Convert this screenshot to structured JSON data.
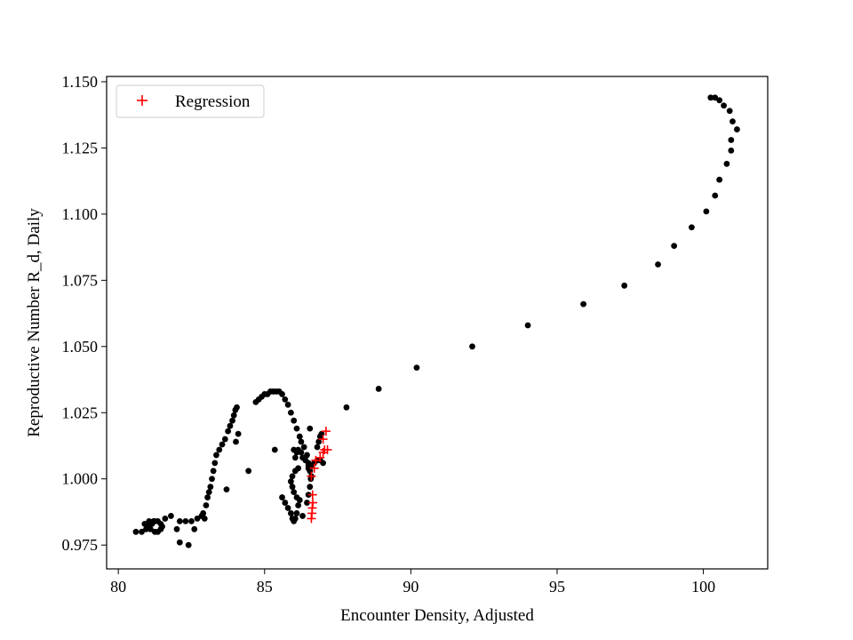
{
  "chart_data": {
    "type": "scatter",
    "title": "",
    "xlabel": "Encounter Density, Adjusted",
    "ylabel": "Reproductive Number R_d, Daily",
    "xlim": [
      79.6,
      102.2
    ],
    "ylim": [
      0.966,
      1.152
    ],
    "xticks": [
      80,
      85,
      90,
      95,
      100
    ],
    "xtick_labels": [
      "80",
      "85",
      "90",
      "95",
      "100"
    ],
    "yticks": [
      0.975,
      1.0,
      1.025,
      1.05,
      1.075,
      1.1,
      1.125,
      1.15
    ],
    "ytick_labels": [
      "0.975",
      "1.000",
      "1.025",
      "1.050",
      "1.075",
      "1.100",
      "1.125",
      "1.150"
    ],
    "grid": false,
    "legend": {
      "position": "top-left",
      "entries": [
        "Regression"
      ]
    },
    "colors": {
      "observed": "#000000",
      "regression": "#ff0000"
    },
    "series": [
      {
        "marker": "dot",
        "color": "#000000",
        "points": [
          [
            80.6,
            0.98
          ],
          [
            80.8,
            0.98
          ],
          [
            80.95,
            0.981
          ],
          [
            81.05,
            0.982
          ],
          [
            81.15,
            0.983
          ],
          [
            81.25,
            0.984
          ],
          [
            81.35,
            0.984
          ],
          [
            81.45,
            0.983
          ],
          [
            81.5,
            0.982
          ],
          [
            81.45,
            0.981
          ],
          [
            81.35,
            0.98
          ],
          [
            81.25,
            0.98
          ],
          [
            81.1,
            0.981
          ],
          [
            81.0,
            0.982
          ],
          [
            80.9,
            0.983
          ],
          [
            81.05,
            0.984
          ],
          [
            81.2,
            0.984
          ],
          [
            81.6,
            0.985
          ],
          [
            81.8,
            0.986
          ],
          [
            82.0,
            0.981
          ],
          [
            82.1,
            0.976
          ],
          [
            82.4,
            0.975
          ],
          [
            82.1,
            0.984
          ],
          [
            82.3,
            0.984
          ],
          [
            82.5,
            0.984
          ],
          [
            82.6,
            0.981
          ],
          [
            82.7,
            0.985
          ],
          [
            82.85,
            0.986
          ],
          [
            82.95,
            0.985
          ],
          [
            82.9,
            0.987
          ],
          [
            83.0,
            0.99
          ],
          [
            83.05,
            0.993
          ],
          [
            83.1,
            0.995
          ],
          [
            83.15,
            0.997
          ],
          [
            83.2,
            1.0
          ],
          [
            83.25,
            1.003
          ],
          [
            83.3,
            1.006
          ],
          [
            83.35,
            1.009
          ],
          [
            83.45,
            1.011
          ],
          [
            83.55,
            1.013
          ],
          [
            83.65,
            1.015
          ],
          [
            83.75,
            1.018
          ],
          [
            83.82,
            1.02
          ],
          [
            83.9,
            1.022
          ],
          [
            83.95,
            1.024
          ],
          [
            84.0,
            1.026
          ],
          [
            84.05,
            1.027
          ],
          [
            84.1,
            1.017
          ],
          [
            84.02,
            1.014
          ],
          [
            83.7,
            0.996
          ],
          [
            84.45,
            1.003
          ],
          [
            84.7,
            1.029
          ],
          [
            84.8,
            1.03
          ],
          [
            84.9,
            1.031
          ],
          [
            85.0,
            1.032
          ],
          [
            85.1,
            1.032
          ],
          [
            85.2,
            1.033
          ],
          [
            85.3,
            1.033
          ],
          [
            85.4,
            1.033
          ],
          [
            85.5,
            1.033
          ],
          [
            85.6,
            1.032
          ],
          [
            85.7,
            1.03
          ],
          [
            85.8,
            1.028
          ],
          [
            85.9,
            1.025
          ],
          [
            86.0,
            1.022
          ],
          [
            86.1,
            1.019
          ],
          [
            86.2,
            1.016
          ],
          [
            86.25,
            1.014
          ],
          [
            86.35,
            1.012
          ],
          [
            86.45,
            1.009
          ],
          [
            86.5,
            1.006
          ],
          [
            86.55,
            1.003
          ],
          [
            86.58,
            1.0
          ],
          [
            86.55,
            0.997
          ],
          [
            86.5,
            0.994
          ],
          [
            86.45,
            0.991
          ],
          [
            86.0,
            1.011
          ],
          [
            86.05,
            1.008
          ],
          [
            86.1,
            1.01
          ],
          [
            86.15,
            1.011
          ],
          [
            86.25,
            1.01
          ],
          [
            86.3,
            1.008
          ],
          [
            86.4,
            1.007
          ],
          [
            86.5,
            1.005
          ],
          [
            86.55,
            1.003
          ],
          [
            86.6,
            1.001
          ],
          [
            85.6,
            0.993
          ],
          [
            85.7,
            0.991
          ],
          [
            85.8,
            0.989
          ],
          [
            85.9,
            0.987
          ],
          [
            85.95,
            0.985
          ],
          [
            86.0,
            0.984
          ],
          [
            86.05,
            0.985
          ],
          [
            86.1,
            0.987
          ],
          [
            86.15,
            0.99
          ],
          [
            86.1,
            0.993
          ],
          [
            86.0,
            0.995
          ],
          [
            85.95,
            0.997
          ],
          [
            85.9,
            0.999
          ],
          [
            85.95,
            1.001
          ],
          [
            86.05,
            1.003
          ],
          [
            86.15,
            1.004
          ],
          [
            85.35,
            1.011
          ],
          [
            86.5,
            1.004
          ],
          [
            86.6,
            1.005
          ],
          [
            86.7,
            1.006
          ],
          [
            86.8,
            1.007
          ],
          [
            86.9,
            1.007
          ],
          [
            87.0,
            1.006
          ],
          [
            86.8,
            1.012
          ],
          [
            86.85,
            1.014
          ],
          [
            86.9,
            1.016
          ],
          [
            86.95,
            1.017
          ],
          [
            86.55,
            1.019
          ],
          [
            86.2,
            0.992
          ],
          [
            86.3,
            0.986
          ],
          [
            87.8,
            1.027
          ],
          [
            88.9,
            1.034
          ],
          [
            90.2,
            1.042
          ],
          [
            92.1,
            1.05
          ],
          [
            94.0,
            1.058
          ],
          [
            95.9,
            1.066
          ],
          [
            97.3,
            1.073
          ],
          [
            98.45,
            1.081
          ],
          [
            99.0,
            1.088
          ],
          [
            99.6,
            1.095
          ],
          [
            100.1,
            1.101
          ],
          [
            100.4,
            1.107
          ],
          [
            100.55,
            1.113
          ],
          [
            100.8,
            1.119
          ],
          [
            100.95,
            1.124
          ],
          [
            100.95,
            1.128
          ],
          [
            101.15,
            1.132
          ],
          [
            101.0,
            1.135
          ],
          [
            100.9,
            1.139
          ],
          [
            100.7,
            1.141
          ],
          [
            100.55,
            1.143
          ],
          [
            100.4,
            1.144
          ],
          [
            100.25,
            1.144
          ]
        ]
      },
      {
        "name": "Regression",
        "marker": "plus",
        "color": "#ff0000",
        "points": [
          [
            86.6,
            0.985
          ],
          [
            86.62,
            0.987
          ],
          [
            86.63,
            0.989
          ],
          [
            86.65,
            0.991
          ],
          [
            86.64,
            0.994
          ],
          [
            86.6,
            1.001
          ],
          [
            86.7,
            1.004
          ],
          [
            86.75,
            1.007
          ],
          [
            86.9,
            1.008
          ],
          [
            87.0,
            1.01
          ],
          [
            87.05,
            1.011
          ],
          [
            87.15,
            1.011
          ],
          [
            87.1,
            1.018
          ],
          [
            87.0,
            1.015
          ]
        ]
      }
    ]
  }
}
